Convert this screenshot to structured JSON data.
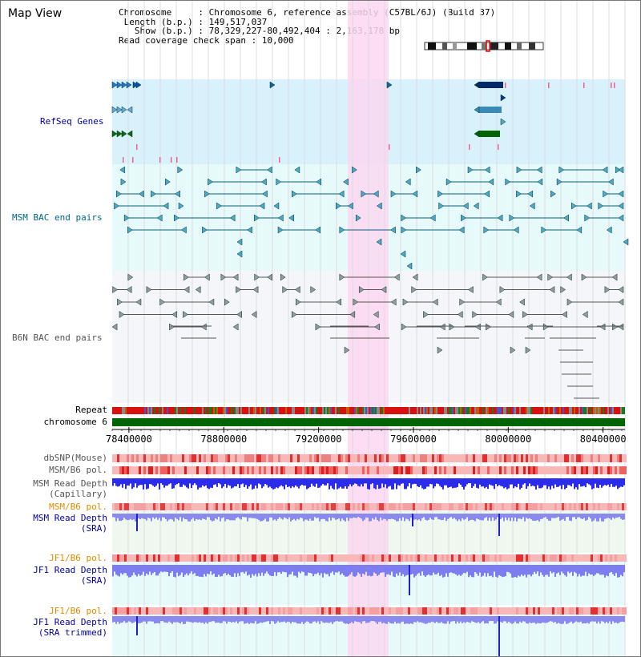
{
  "view": {
    "title": "Map View",
    "info_lines": [
      "Chromosome     : Chromosome 6, reference assembly (C57BL/6J) (Build 37)",
      " Length (b.p.) : 149,517,037",
      "   Show (b.p.) : 78,329,227-80,492,404 : 2,163,178 bp",
      "Read coverage check span : 10,000"
    ]
  },
  "tracks": {
    "refseq": "RefSeq Genes",
    "msm_bac": "MSM BAC end pairs",
    "b6n_bac": "B6N BAC end pairs",
    "repeat": "Repeat",
    "chromosome": "chromosome 6",
    "dbsnp": "dbSNP(Mouse)",
    "msm_b6_pol": "MSM/B6 pol.",
    "msm_depth_cap_1": "MSM Read Depth",
    "msm_depth_cap_2": "(Capillary)",
    "msm_b6_pol_sra": "MSM/B6 pol.",
    "msm_depth_sra_1": "MSM Read Depth",
    "msm_depth_sra_2": "(SRA)",
    "jf1_b6_pol": "JF1/B6 pol.",
    "jf1_depth_sra_1": "JF1 Read Depth",
    "jf1_depth_sra_2": "(SRA)",
    "jf1_b6_pol_trim": "JF1/B6 pol.",
    "jf1_depth_trim_1": "JF1 Read Depth",
    "jf1_depth_trim_2": "(SRA trimmed)"
  },
  "axis": {
    "ticks": [
      "78400000",
      "78800000",
      "79200000",
      "79600000",
      "80000000",
      "80400000"
    ],
    "tick_values": [
      78400000,
      78800000,
      79200000,
      79600000,
      80000000,
      80400000
    ],
    "range": [
      78329227,
      80492404
    ]
  },
  "colors": {
    "highlight": "#fbd7f1",
    "refseq_bg": "#d8f1fb",
    "msm_bg": "#e6fafc",
    "b6n_bg": "#f4f6fa",
    "chromosome": "#006400",
    "depth_blue": "#2b2bea",
    "depth_light": "#7d7df0",
    "snp_red": "#f08080"
  }
}
